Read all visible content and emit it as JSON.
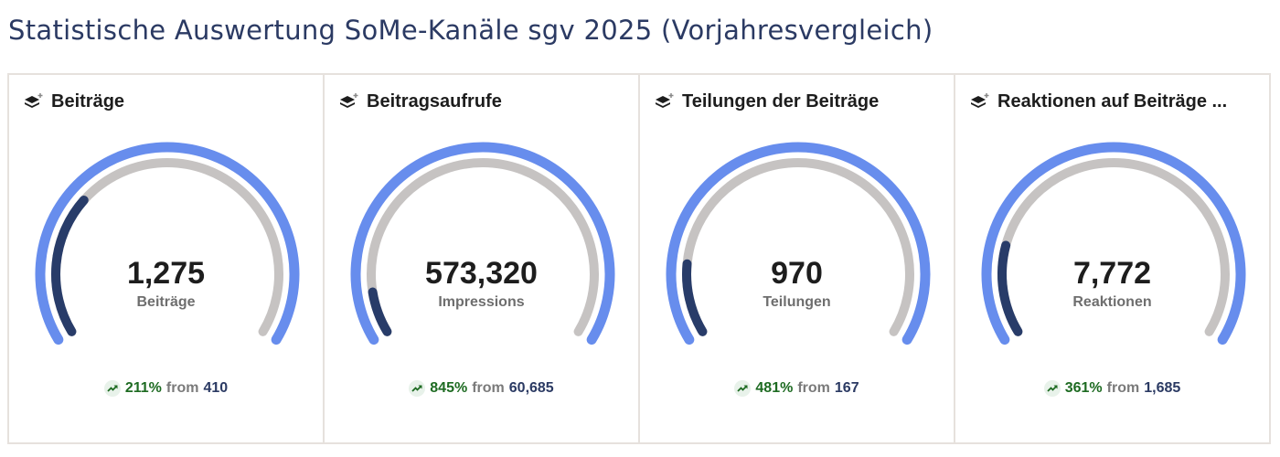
{
  "page_title": "Statistische Auswertung SoMe-Kanäle sgv 2025 (Vorjahresvergleich)",
  "colors": {
    "outer": "#678ded",
    "track": "#c6c3c2",
    "progress": "#283c69",
    "up": "#1e6b22"
  },
  "panels": [
    {
      "title": "Beiträge",
      "value": "1,275",
      "unit": "Beiträge",
      "change": "211%",
      "from_label": "from",
      "previous": "410",
      "fill": 0.3
    },
    {
      "title": "Beitragsaufrufe",
      "value": "573,320",
      "unit": "Impressions",
      "change": "845%",
      "from_label": "from",
      "previous": "60,685",
      "fill": 0.09
    },
    {
      "title": "Teilungen der Beiträge",
      "value": "970",
      "unit": "Teilungen",
      "change": "481%",
      "from_label": "from",
      "previous": "167",
      "fill": 0.15
    },
    {
      "title": "Reaktionen auf Beiträge ...",
      "value": "7,772",
      "unit": "Reaktionen",
      "change": "361%",
      "from_label": "from",
      "previous": "1,685",
      "fill": 0.19
    }
  ]
}
